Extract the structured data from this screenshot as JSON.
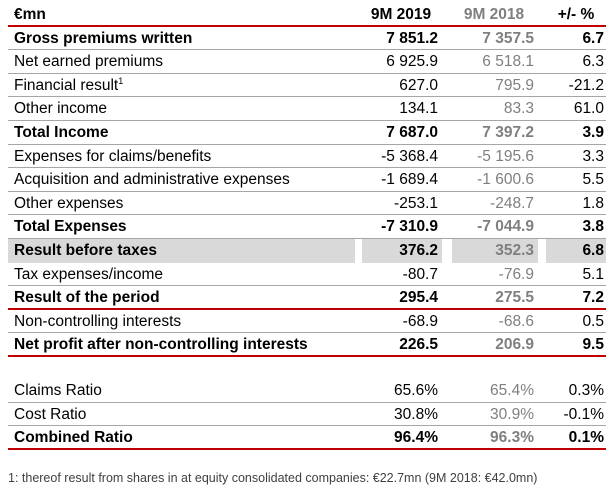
{
  "table": {
    "header": {
      "label": "€mn",
      "col1": "9M 2019",
      "col2": "9M 2018",
      "col3": "+/- %"
    },
    "rows": [
      {
        "label": "Gross premiums written",
        "v2019": "7 851.2",
        "v2018": "7 357.5",
        "change": "6.7",
        "bold": true
      },
      {
        "label": "Net earned premiums",
        "v2019": "6 925.9",
        "v2018": "6 518.1",
        "change": "6.3",
        "bold": false
      },
      {
        "label": "Financial result",
        "footnote_mark": "1",
        "v2019": "627.0",
        "v2018": "795.9",
        "change": "-21.2",
        "bold": false
      },
      {
        "label": "Other income",
        "v2019": "134.1",
        "v2018": "83.3",
        "change": "61.0",
        "bold": false
      },
      {
        "label": "Total Income",
        "v2019": "7 687.0",
        "v2018": "7 397.2",
        "change": "3.9",
        "bold": true
      },
      {
        "label": "Expenses for claims/benefits",
        "v2019": "-5 368.4",
        "v2018": "-5 195.6",
        "change": "3.3",
        "bold": false
      },
      {
        "label": "Acquisition and administrative expenses",
        "v2019": "-1 689.4",
        "v2018": "-1 600.6",
        "change": "5.5",
        "bold": false
      },
      {
        "label": "Other expenses",
        "v2019": "-253.1",
        "v2018": "-248.7",
        "change": "1.8",
        "bold": false
      },
      {
        "label": "Total Expenses",
        "v2019": "-7 310.9",
        "v2018": "-7 044.9",
        "change": "3.8",
        "bold": true
      },
      {
        "label": "Result before taxes",
        "v2019": "376.2",
        "v2018": "352.3",
        "change": "6.8",
        "bold": true
      },
      {
        "label": "Tax expenses/income",
        "v2019": "-80.7",
        "v2018": "-76.9",
        "change": "5.1",
        "bold": false
      },
      {
        "label": "Result of the period",
        "v2019": "295.4",
        "v2018": "275.5",
        "change": "7.2",
        "bold": true
      },
      {
        "label": "Non-controlling interests",
        "v2019": "-68.9",
        "v2018": "-68.6",
        "change": "0.5",
        "bold": false
      },
      {
        "label": "Net profit after non-controlling interests",
        "v2019": "226.5",
        "v2018": "206.9",
        "change": "9.5",
        "bold": true
      }
    ],
    "ratios": [
      {
        "label": "Claims Ratio",
        "v2019": "65.6%",
        "v2018": "65.4%",
        "change": "0.3%",
        "bold": false
      },
      {
        "label": "Cost Ratio",
        "v2019": "30.8%",
        "v2018": "30.9%",
        "change": "-0.1%",
        "bold": false
      },
      {
        "label": "Combined Ratio",
        "v2019": "96.4%",
        "v2018": "96.3%",
        "change": "0.1%",
        "bold": true
      }
    ]
  },
  "footnote": "1: thereof result from shares in at equity consolidated companies: €22.7mn (9M 2018: €42.0mn)",
  "colors": {
    "accent_line": "#c00000",
    "prior_year_text": "#7f7f7f",
    "highlight_fill": "#d9d9d9"
  }
}
